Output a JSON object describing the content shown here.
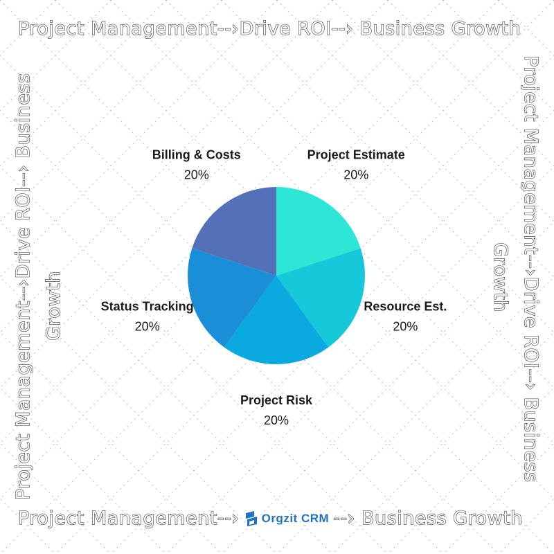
{
  "banners": {
    "top": "Project Management--›Drive ROI--› Business Growth",
    "bottom_prefix": "Project Management--›",
    "bottom_suffix": "--› Business Growth",
    "left_line1": "Project Management--›Drive ROI--› Business",
    "left_line2": "Growth",
    "right_line1": "Project Management--›Drive ROI--› Business",
    "right_line2": "Growth"
  },
  "logo": {
    "text": "Orgzit CRM",
    "color": "#1e73be",
    "icon": "orgzit-logo-icon"
  },
  "chart_data": {
    "type": "pie",
    "categories": [
      "Project Estimate",
      "Resource Est.",
      "Project Risk",
      "Status Tracking",
      "Billing & Costs"
    ],
    "values": [
      20,
      20,
      20,
      20,
      20
    ],
    "labels_pct": [
      "20%",
      "20%",
      "20%",
      "20%",
      "20%"
    ],
    "colors": [
      "#2ee6d6",
      "#16c8da",
      "#0aa9e0",
      "#1a8ed6",
      "#5470b8"
    ],
    "start_angle_deg": 0,
    "direction": "clockwise"
  }
}
